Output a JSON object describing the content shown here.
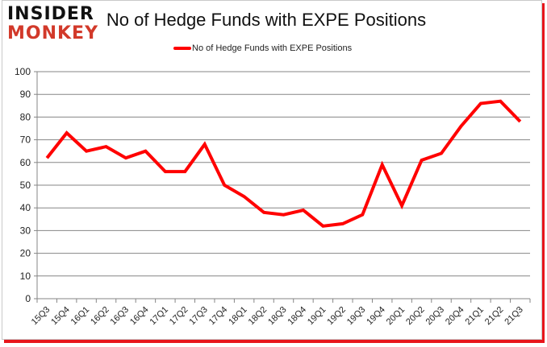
{
  "logo": {
    "line1": "INSIDER",
    "line2": "MONKEY"
  },
  "chart_data": {
    "type": "line",
    "title": "No of Hedge Funds with EXPE Positions",
    "xlabel": "",
    "ylabel": "",
    "ylim": [
      0,
      100
    ],
    "yticks": [
      0,
      10,
      20,
      30,
      40,
      50,
      60,
      70,
      80,
      90,
      100
    ],
    "grid": true,
    "legend_position": "top",
    "categories": [
      "15Q3",
      "15Q4",
      "16Q1",
      "16Q2",
      "16Q3",
      "16Q4",
      "17Q1",
      "17Q2",
      "17Q3",
      "17Q4",
      "18Q1",
      "18Q2",
      "18Q3",
      "18Q4",
      "19Q1",
      "19Q2",
      "19Q3",
      "19Q4",
      "20Q1",
      "20Q2",
      "20Q3",
      "20Q4",
      "21Q1",
      "21Q2",
      "21Q3"
    ],
    "series": [
      {
        "name": "No of Hedge Funds with EXPE Positions",
        "color": "#ff0000",
        "values": [
          62,
          73,
          65,
          67,
          62,
          65,
          56,
          56,
          68,
          50,
          45,
          38,
          37,
          39,
          32,
          33,
          37,
          59,
          41,
          61,
          64,
          76,
          86,
          87,
          78
        ]
      }
    ]
  }
}
